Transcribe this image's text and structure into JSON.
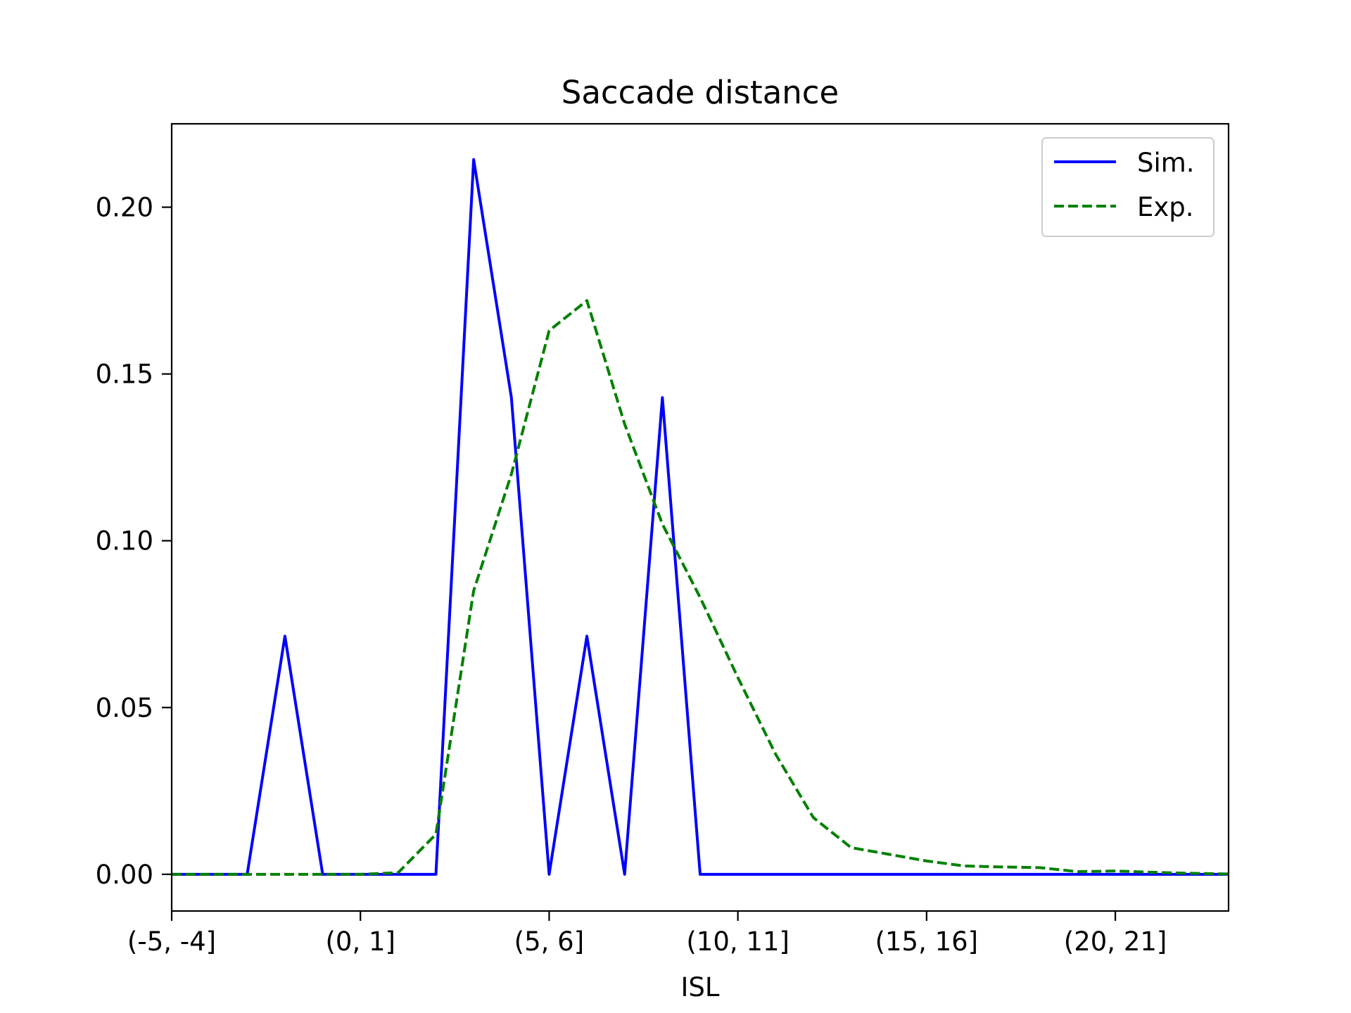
{
  "chart_data": {
    "type": "line",
    "title": "Saccade distance",
    "xlabel": "ISL",
    "ylabel": "",
    "x": [
      -5,
      -4,
      -3,
      -2,
      -1,
      0,
      1,
      2,
      3,
      4,
      5,
      6,
      7,
      8,
      9,
      10,
      11,
      12,
      13,
      14,
      15,
      16,
      17,
      18,
      19,
      20,
      21,
      22,
      23
    ],
    "xticks": [
      {
        "x": -5,
        "label": "(-5, -4]"
      },
      {
        "x": 0,
        "label": "(0, 1]"
      },
      {
        "x": 5,
        "label": "(5, 6]"
      },
      {
        "x": 10,
        "label": "(10, 11]"
      },
      {
        "x": 15,
        "label": "(15, 16]"
      },
      {
        "x": 20,
        "label": "(20, 21]"
      }
    ],
    "yticks": [
      {
        "y": 0.0,
        "label": "0.00"
      },
      {
        "y": 0.05,
        "label": "0.05"
      },
      {
        "y": 0.1,
        "label": "0.10"
      },
      {
        "y": 0.15,
        "label": "0.15"
      },
      {
        "y": 0.2,
        "label": "0.20"
      }
    ],
    "xlim": [
      -5,
      23
    ],
    "ylim": [
      -0.011,
      0.225
    ],
    "grid": false,
    "legend_position": "top-right",
    "series": [
      {
        "name": "Sim.",
        "style": "solid",
        "color": "#0000ff",
        "values": [
          0,
          0,
          0,
          0.0714,
          0,
          0,
          0,
          0,
          0.2143,
          0.1429,
          0,
          0.0714,
          0,
          0.1429,
          0,
          0,
          0,
          0,
          0,
          0,
          0,
          0,
          0,
          0,
          0,
          0,
          0,
          0,
          0
        ]
      },
      {
        "name": "Exp.",
        "style": "dashed",
        "color": "#008000",
        "values": [
          0,
          0,
          0,
          0,
          0,
          0,
          0.0005,
          0.012,
          0.085,
          0.12,
          0.163,
          0.172,
          0.135,
          0.105,
          0.083,
          0.059,
          0.036,
          0.017,
          0.008,
          0.006,
          0.004,
          0.0025,
          0.0022,
          0.002,
          0.0008,
          0.001,
          0.0006,
          0.0003,
          0.0001
        ]
      }
    ]
  }
}
